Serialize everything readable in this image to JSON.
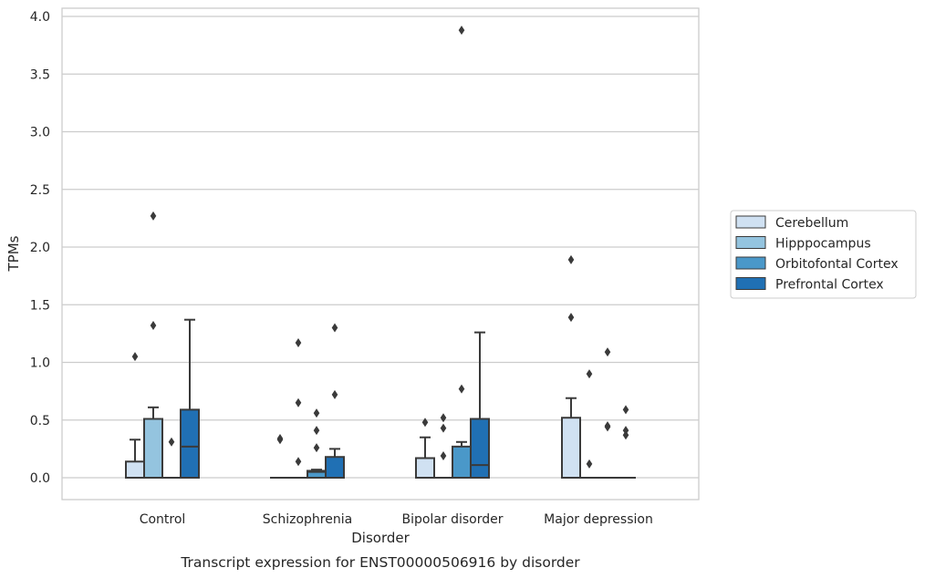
{
  "chart_data": {
    "type": "box",
    "xlabel": "Disorder",
    "ylabel": "TPMs",
    "caption": "Transcript expression for ENST00000506916 by disorder",
    "ylim": [
      -0.18,
      4.07
    ],
    "yticks": [
      "0.0",
      "0.5",
      "1.0",
      "1.5",
      "2.0",
      "2.5",
      "3.0",
      "3.5",
      "4.0"
    ],
    "ytick_values": [
      0,
      0.5,
      1.0,
      1.5,
      2.0,
      2.5,
      3.0,
      3.5,
      4.0
    ],
    "grid": "horizontal",
    "legend_position": "right",
    "categories": [
      "Control",
      "Schizophrenia",
      "Bipolar disorder",
      "Major depression"
    ],
    "series": [
      {
        "name": "Cerebellum",
        "color": "#d0e1f2",
        "boxes": [
          {
            "whislo": 0,
            "q1": 0,
            "med": 0,
            "q3": 0.14,
            "whishi": 0.33,
            "fliers": [
              1.05
            ]
          },
          {
            "whislo": 0,
            "q1": 0,
            "med": 0,
            "q3": 0,
            "whishi": 0,
            "fliers": [
              0.34,
              0.33
            ]
          },
          {
            "whislo": 0,
            "q1": 0,
            "med": 0,
            "q3": 0.17,
            "whishi": 0.35,
            "fliers": [
              0.48
            ]
          },
          {
            "whislo": 0,
            "q1": 0,
            "med": 0,
            "q3": 0.52,
            "whishi": 0.69,
            "fliers": [
              1.89,
              1.39
            ]
          }
        ]
      },
      {
        "name": "Hipppocampus",
        "color": "#94c4df",
        "boxes": [
          {
            "whislo": 0,
            "q1": 0,
            "med": 0,
            "q3": 0.51,
            "whishi": 0.61,
            "fliers": [
              2.27,
              1.32
            ]
          },
          {
            "whislo": 0,
            "q1": 0,
            "med": 0,
            "q3": 0,
            "whishi": 0,
            "fliers": [
              1.17,
              0.65,
              0.14
            ]
          },
          {
            "whislo": 0,
            "q1": 0,
            "med": 0,
            "q3": 0,
            "whishi": 0,
            "fliers": [
              0.52,
              0.43,
              0.19
            ]
          },
          {
            "whislo": 0,
            "q1": 0,
            "med": 0,
            "q3": 0,
            "whishi": 0,
            "fliers": [
              0.9,
              0.12
            ]
          }
        ]
      },
      {
        "name": "Orbitofontal Cortex",
        "color": "#4a98c9",
        "boxes": [
          {
            "whislo": 0,
            "q1": 0,
            "med": 0,
            "q3": 0,
            "whishi": 0,
            "fliers": [
              0.31
            ]
          },
          {
            "whislo": 0,
            "q1": 0,
            "med": 0.05,
            "q3": 0.06,
            "whishi": 0.07,
            "fliers": [
              0.56,
              0.41,
              0.26
            ]
          },
          {
            "whislo": 0,
            "q1": 0,
            "med": 0,
            "q3": 0.27,
            "whishi": 0.31,
            "fliers": [
              0.77,
              3.88
            ]
          },
          {
            "whislo": 0,
            "q1": 0,
            "med": 0,
            "q3": 0,
            "whishi": 0,
            "fliers": [
              1.09,
              0.45,
              0.44
            ]
          }
        ]
      },
      {
        "name": "Prefrontal Cortex",
        "color": "#2070b4",
        "boxes": [
          {
            "whislo": 0,
            "q1": 0,
            "med": 0.27,
            "q3": 0.59,
            "whishi": 1.37,
            "fliers": []
          },
          {
            "whislo": 0,
            "q1": 0,
            "med": 0,
            "q3": 0.18,
            "whishi": 0.25,
            "fliers": [
              1.3,
              0.72
            ]
          },
          {
            "whislo": 0,
            "q1": 0,
            "med": 0.11,
            "q3": 0.51,
            "whishi": 1.26,
            "fliers": []
          },
          {
            "whislo": 0,
            "q1": 0,
            "med": 0,
            "q3": 0,
            "whishi": 0,
            "fliers": [
              0.59,
              0.41,
              0.37
            ]
          }
        ]
      }
    ]
  }
}
